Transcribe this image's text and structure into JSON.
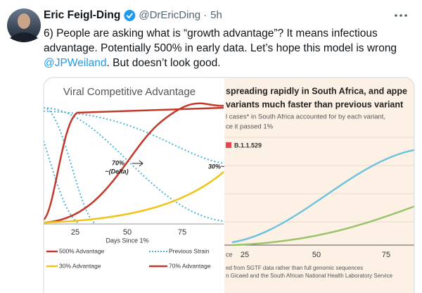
{
  "header": {
    "name": "Eric Feigl-Ding",
    "handle": "@DrEricDing",
    "time": "5h"
  },
  "tweet": {
    "lines": [
      "6) People are asking what is “growth advantage”? It means infectious",
      "advantage. Potentially 500% in early data. Let’s hope this model is wrong"
    ],
    "mention": "@JPWeiland",
    "rest": ". But doesn’t look good."
  },
  "left_image": {
    "title": "Viral Competitive Advantage",
    "x_ticks": [
      25,
      50,
      75
    ],
    "x_label": "Days Since 1%",
    "annotations": [
      "70%",
      "~(Delta)",
      "30%~"
    ],
    "legend": [
      "500% Advantage",
      "Previous Strain",
      "30% Advantage",
      "70% Advantage"
    ]
  },
  "right_image": {
    "title_lines": [
      "spreading rapidly in South Africa, and appe",
      "variants much faster than previous variant"
    ],
    "subtitle_lines": [
      "l cases* in South Africa accounted for by each variant,",
      "ce it passed 1%"
    ],
    "series_label": "B.1.1.529",
    "axis_fragment": "ce",
    "x_ticks": [
      25,
      50,
      75
    ],
    "footnotes": [
      "ed from SGTF data rather than full genomic sequences",
      "n Gicaed and the South African National Health Laboratory Service"
    ]
  }
}
